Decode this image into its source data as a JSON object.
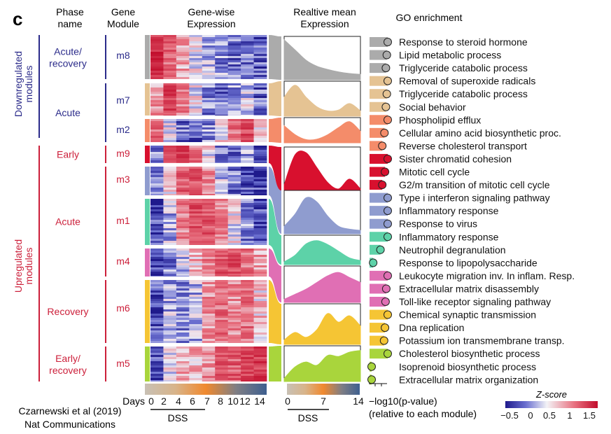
{
  "panel_label": "c",
  "headers": {
    "phase_line1": "Phase",
    "phase_line2": "name",
    "module_line1": "Gene",
    "module_line2": "Module",
    "expr_line1": "Gene-wise",
    "expr_line2": "Expression",
    "mean_line1": "Realtive mean",
    "mean_line2": "Expression",
    "go": "GO enrichment"
  },
  "groups": {
    "down_line1": "Downregulated",
    "down_line2": "modules",
    "up_line1": "Upregulated",
    "up_line2": "modules",
    "down_color": "#2b2b8a",
    "up_color": "#cc1f3a"
  },
  "phases": [
    {
      "line1": "Acute/",
      "line2": "recovery",
      "group": "down"
    },
    {
      "line1": "Acute",
      "line2": "",
      "group": "down"
    },
    {
      "line1": "Early",
      "line2": "",
      "group": "up"
    },
    {
      "line1": "Acute",
      "line2": "",
      "group": "up"
    },
    {
      "line1": "Recovery",
      "line2": "",
      "group": "up"
    },
    {
      "line1": "Early/",
      "line2": "recovery",
      "group": "up"
    }
  ],
  "modules": [
    {
      "name": "m8",
      "color": "#ababab",
      "group": "down",
      "curve": [
        0.95,
        0.7,
        0.45,
        0.3,
        0.22,
        0.16,
        0.12,
        0.1
      ]
    },
    {
      "name": "m7",
      "color": "#e5c393",
      "group": "down",
      "curve": [
        0.55,
        0.92,
        0.55,
        0.25,
        0.12,
        0.15,
        0.35,
        0.12
      ]
    },
    {
      "name": "m2",
      "color": "#f48c6a",
      "group": "down",
      "curve": [
        0.7,
        0.3,
        0.08,
        0.1,
        0.3,
        0.62,
        0.88,
        0.45
      ]
    },
    {
      "name": "m9",
      "color": "#d8102e",
      "group": "up",
      "curve": [
        0.15,
        0.85,
        0.9,
        0.55,
        0.2,
        0.05,
        0.28,
        0.05
      ]
    },
    {
      "name": "m3",
      "color": "#8f9ccf",
      "group": "up",
      "curve": [
        0.15,
        0.45,
        0.85,
        0.75,
        0.4,
        0.15,
        0.08,
        0.05
      ]
    },
    {
      "name": "m1",
      "color": "#5dd2a8",
      "group": "up",
      "curve": [
        0.05,
        0.3,
        0.72,
        0.85,
        0.7,
        0.45,
        0.2,
        0.1
      ]
    },
    {
      "name": "m4",
      "color": "#e06fb4",
      "group": "up",
      "curve": [
        0.05,
        0.2,
        0.35,
        0.55,
        0.75,
        0.85,
        0.7,
        0.55
      ]
    },
    {
      "name": "m6",
      "color": "#f5c534",
      "group": "up",
      "curve": [
        0.08,
        0.28,
        0.15,
        0.35,
        0.78,
        0.55,
        0.72,
        0.45
      ]
    },
    {
      "name": "m5",
      "color": "#a9d53c",
      "group": "up",
      "curve": [
        0.05,
        0.4,
        0.55,
        0.45,
        0.75,
        0.72,
        0.85,
        0.9
      ]
    }
  ],
  "go_terms": [
    {
      "label": "Response to steroid hormone",
      "module": "m8",
      "value": 1.0
    },
    {
      "label": "Lipid metabolic process",
      "module": "m8",
      "value": 0.95
    },
    {
      "label": "Triglyceride catabolic process",
      "module": "m8",
      "value": 0.9
    },
    {
      "label": "Removal of superoxide radicals",
      "module": "m7",
      "value": 1.0
    },
    {
      "label": "Triglyceride catabolic process",
      "module": "m7",
      "value": 0.95
    },
    {
      "label": "Social behavior",
      "module": "m7",
      "value": 0.9
    },
    {
      "label": "Phospholipid efflux",
      "module": "m2",
      "value": 1.0
    },
    {
      "label": "Cellular amino acid biosynthetic proc.",
      "module": "m2",
      "value": 0.82
    },
    {
      "label": "Reverse cholesterol transport",
      "module": "m2",
      "value": 0.7
    },
    {
      "label": "Sister chromatid cohesion",
      "module": "m9",
      "value": 1.0
    },
    {
      "label": "Mitotic cell cycle",
      "module": "m9",
      "value": 0.85
    },
    {
      "label": "G2/m transition of mitotic cell cycle",
      "module": "m9",
      "value": 0.7
    },
    {
      "label": "Type i interferon signaling pathway",
      "module": "m3",
      "value": 1.0
    },
    {
      "label": "Inflammatory response",
      "module": "m3",
      "value": 1.0
    },
    {
      "label": "Response to virus",
      "module": "m3",
      "value": 1.0
    },
    {
      "label": "Inflammatory response",
      "module": "m1",
      "value": 1.0
    },
    {
      "label": "Neutrophil degranulation",
      "module": "m1",
      "value": 0.6
    },
    {
      "label": "Response to lipopolysaccharide",
      "module": "m1",
      "value": 0.2
    },
    {
      "label": "Leukocyte migration inv. In inflam. Resp.",
      "module": "m4",
      "value": 1.0
    },
    {
      "label": "Extracellular matrix disassembly",
      "module": "m4",
      "value": 0.92
    },
    {
      "label": "Toll-like receptor signaling pathway",
      "module": "m4",
      "value": 0.88
    },
    {
      "label": "Chemical synaptic transmission",
      "module": "m6",
      "value": 1.0
    },
    {
      "label": "Dna replication",
      "module": "m6",
      "value": 0.85
    },
    {
      "label": "Potassium ion transmembrane transp.",
      "module": "m6",
      "value": 0.8
    },
    {
      "label": "Cholesterol biosynthetic process",
      "module": "m5",
      "value": 1.0
    },
    {
      "label": "Isoprenoid biosynthetic process",
      "module": "m5",
      "value": 0.1
    },
    {
      "label": "Extracellular matrix organization",
      "module": "m5",
      "value": 0.08
    }
  ],
  "axis": {
    "days_label": "Days",
    "days_ticks": [
      "0",
      "2",
      "4",
      "6",
      "7",
      "8",
      "10",
      "12",
      "14"
    ],
    "dss_label": "DSS",
    "mean_ticks": [
      "0",
      "7",
      "14"
    ],
    "mean_dss_label": "DSS",
    "go_xlabel_line1": "−log10(p-value)",
    "go_xlabel_line2": "(relative to each module)"
  },
  "colorbar": {
    "title": "Z-score",
    "ticks": [
      "−0.5",
      "0",
      "0.5",
      "1",
      "1.5"
    ],
    "colors": [
      "#1f1a8c",
      "#6a6fd0",
      "#f3f3f6",
      "#e8707f",
      "#c20d2c"
    ]
  },
  "citation": {
    "line1": "Czarnewski et al (2019)",
    "line2": "Nat Communications"
  }
}
